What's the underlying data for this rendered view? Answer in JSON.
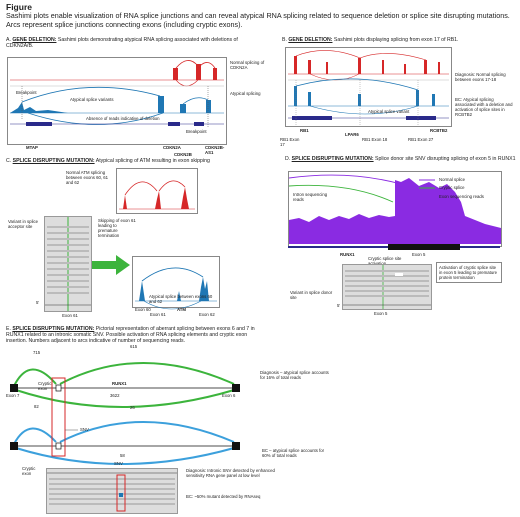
{
  "figure": {
    "title": "Figure",
    "caption": "Sashimi plots enable visualization of RNA splice junctions and can reveal atypical RNA splicing related to sequence deletion or splice site disrupting mutations. Arcs represent splice junctions connecting exons (including cryptic exons)."
  },
  "panelA": {
    "letter": "A.",
    "tag": "GENE DELETION:",
    "text": "Sashimi plots demonstrating atypical RNA splicing associated with deletions of CDKN2A/B.",
    "normal_label": "Normal splicing of CDKN2A",
    "atypical_label": "Atypical splicing",
    "breakpoint_left": "Breakpoint",
    "variants": "Atypical splice variants",
    "absence": "Absence of reads indicative of deletion",
    "breakpoint_right": "Breakpoint",
    "gene_mtap": "MTAP",
    "gene_cdkn2a": "CDKN2A",
    "gene_cdkn2b": "CDKN2B",
    "gene_as1": "CDKN2B-AS1",
    "colors": {
      "normal": "#d62728",
      "atypical": "#1f77b4"
    }
  },
  "panelB": {
    "letter": "B.",
    "tag": "GENE DELETION:",
    "text": "Sashimi plots displaying splicing from exon 17 of RB1.",
    "diagnosis": "Diagnosis: Normal splicing between exons 17-18",
    "bc": "BC: Atypical splicing associated with a deletion and activation of splice sites in RCBTB2",
    "atypical_variant": "Atypical splice variant",
    "gene_rb1": "RB1",
    "gene_lpar6": "LPAR6",
    "gene_rcbtb2": "RCBTB2",
    "exon17": "RB1 Exon 17",
    "exon18": "RB1 Exon 18",
    "exon27": "RB1 Exon 27"
  },
  "panelC": {
    "letter": "C.",
    "tag": "SPLICE DISRUPTING MUTATION:",
    "text": "Atypical splicing of ATM resulting in exon skipping",
    "normal": "Normal ATM splicing between exons 60, 61 and 62",
    "variant": "Variant in splice acceptor site",
    "skipping": "Skipping of exon 61 leading to premature termination",
    "atypical": "Atypical splice between exons 60 and 62",
    "five_prime": "5'",
    "exon61_bottom": "Exon 61",
    "exon60": "Exon 60",
    "exon61": "Exon 61",
    "exon62": "Exon 62",
    "gene": "ATM"
  },
  "panelD": {
    "letter": "D.",
    "tag": "SPLICE DISRUPTING MUTATION:",
    "text": "Splice donor site SNV disrupting splicing of exon 5 in RUNX1",
    "legend_normal": "Normal splice",
    "legend_cryptic": "Cryptic splice",
    "legend_exon": "Exon sequencing reads",
    "intron": "Intron sequencing reads",
    "gene": "RUNX1",
    "exon5_top": "Exon 5",
    "cryptic_activation": "Cryptic splice site activation",
    "activation_note": "Activation of cryptic splice site in exon 5 leading to premature protein termination",
    "variant": "Variant in splice donor site",
    "five_prime": "5'",
    "exon5_bottom": "Exon 5"
  },
  "panelE": {
    "letter": "E.",
    "tag": "SPLICE DISRUPTING MUTATION:",
    "text": "Pictorial representation of aberrant splicing between exons 6 and 7 in RUNX1 related to an intronic somatic SNV. Possible activation of RNA splicing elements and cryptic exon insertion. Numbers adjacent to arcs indicative of number of sequencing reads.",
    "top_n1": "715",
    "top_n2": "615",
    "top_n3": "3622",
    "bot_n1": "82",
    "bot_n2": "26",
    "bot_n3": "58",
    "cryptic_exon": "Cryptic exon",
    "gene": "RUNX1",
    "exon7": "Exon 7",
    "exon6": "Exon 6",
    "diagnosis": "Diagnosis – atypical splice accounts for 16% of total reads",
    "snv": "SNV",
    "bc": "BC – atypical splice accounts for 60% of total reads",
    "cryptic_exon2": "Cryptic exon",
    "snv2": "SNV",
    "diag_snv": "Diagnosis: Intronic SNV detected by enhanced sensitivity RNA gene panel at low level",
    "bc_mutant": "BC: ~50% mutant detected by RNAseq",
    "colors": {
      "diagnosis": "#3cb43c",
      "bc": "#3ca0dc",
      "box": "#d62728"
    }
  }
}
